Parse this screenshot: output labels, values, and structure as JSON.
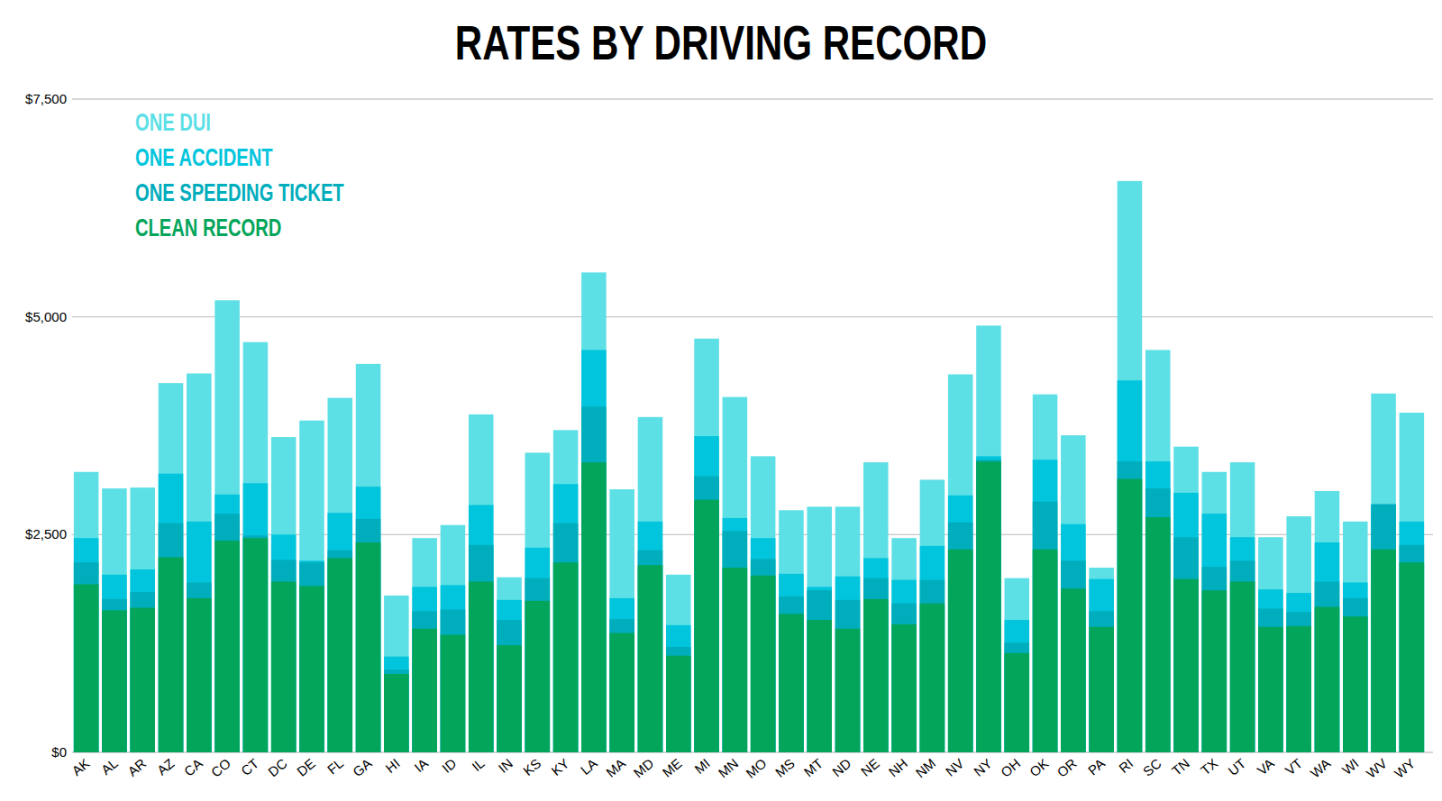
{
  "chart_data": {
    "type": "bar",
    "title": "RATES BY DRIVING RECORD",
    "stacked": false,
    "grid": true,
    "legend": "top-left",
    "categories": [
      "AK",
      "AL",
      "AR",
      "AZ",
      "CA",
      "CO",
      "CT",
      "DC",
      "DE",
      "FL",
      "GA",
      "HI",
      "IA",
      "ID",
      "IL",
      "IN",
      "KS",
      "KY",
      "LA",
      "MA",
      "MD",
      "ME",
      "MI",
      "MN",
      "MO",
      "MS",
      "MT",
      "ND",
      "NE",
      "NH",
      "NM",
      "NV",
      "NY",
      "OH",
      "OK",
      "OR",
      "PA",
      "RI",
      "SC",
      "TN",
      "TX",
      "UT",
      "VA",
      "VT",
      "WA",
      "WI",
      "WV",
      "WY"
    ],
    "ylim": [
      0,
      7500
    ],
    "yticks": [
      {
        "value": 0,
        "label": "$0"
      },
      {
        "value": 2500,
        "label": "$2,500"
      },
      {
        "value": 5000,
        "label": "$5,000"
      },
      {
        "value": 7500,
        "label": "$7,500"
      }
    ],
    "series": [
      {
        "name": "ONE DUI",
        "color": "#5ddfe6",
        "values": [
          3220,
          3030,
          3040,
          4240,
          4350,
          5190,
          4710,
          3620,
          3810,
          4070,
          4460,
          1800,
          2460,
          2610,
          3880,
          2010,
          3440,
          3700,
          5510,
          3020,
          3850,
          2040,
          4750,
          4080,
          3400,
          2780,
          2820,
          2820,
          3330,
          2460,
          3130,
          4340,
          4900,
          2000,
          4110,
          3640,
          2120,
          6560,
          4620,
          3510,
          3220,
          3330,
          2470,
          2710,
          3000,
          2650,
          4120,
          3900
        ]
      },
      {
        "name": "ONE ACCIDENT",
        "color": "#00c5dc",
        "values": [
          2460,
          2040,
          2100,
          3200,
          2650,
          2960,
          3090,
          2500,
          2200,
          2750,
          3050,
          1100,
          1900,
          1920,
          2840,
          1750,
          2350,
          3080,
          4620,
          1770,
          2650,
          1460,
          3630,
          2690,
          2460,
          2050,
          1900,
          2020,
          2230,
          1980,
          2370,
          2950,
          3400,
          1520,
          3360,
          2620,
          1990,
          4270,
          3340,
          2980,
          2740,
          2470,
          1870,
          1830,
          2410,
          1950,
          2840,
          2650
        ]
      },
      {
        "name": "ONE SPEEDING TICKET",
        "color": "#00adbc",
        "values": [
          2180,
          1760,
          1840,
          2630,
          1950,
          2740,
          2490,
          2210,
          2180,
          2320,
          2680,
          950,
          1620,
          1640,
          2380,
          1520,
          2000,
          2630,
          3970,
          1530,
          2320,
          1210,
          3170,
          2540,
          2220,
          1790,
          1860,
          1750,
          2000,
          1710,
          1980,
          2640,
          3360,
          1260,
          2880,
          2200,
          1620,
          3340,
          3030,
          2470,
          2130,
          2200,
          1650,
          1610,
          1960,
          1770,
          2850,
          2380
        ]
      },
      {
        "name": "CLEAN RECORD",
        "color": "#02a55a",
        "values": [
          1930,
          1630,
          1660,
          2240,
          1770,
          2430,
          2460,
          1960,
          1910,
          2230,
          2410,
          900,
          1420,
          1350,
          1960,
          1230,
          1740,
          2180,
          3330,
          1370,
          2150,
          1110,
          2900,
          2120,
          2030,
          1590,
          1520,
          1420,
          1760,
          1470,
          1710,
          2330,
          3340,
          1140,
          2330,
          1880,
          1440,
          3140,
          2700,
          1990,
          1860,
          1960,
          1440,
          1450,
          1670,
          1560,
          2330,
          2180
        ]
      }
    ]
  }
}
